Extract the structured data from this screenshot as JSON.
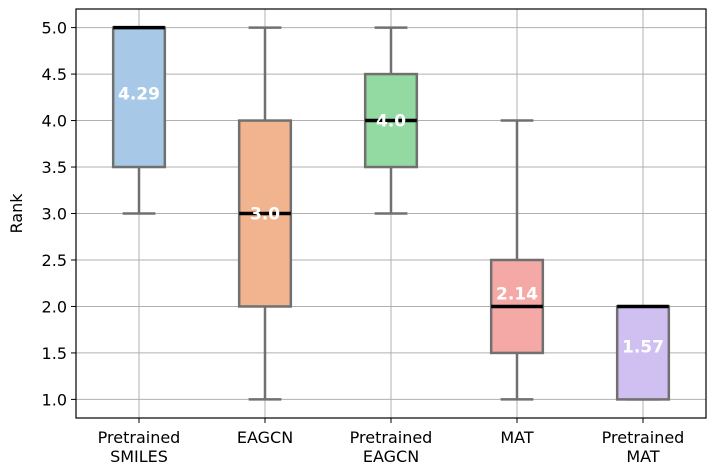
{
  "chart_data": {
    "type": "box",
    "title": "",
    "xlabel": "",
    "ylabel": "Rank",
    "ylim": [
      0.8,
      5.2
    ],
    "yticks": [
      "1.0",
      "1.5",
      "2.0",
      "2.5",
      "3.0",
      "3.5",
      "4.0",
      "4.5",
      "5.0"
    ],
    "grid": true,
    "categories": [
      [
        "Pretrained",
        "SMILES"
      ],
      [
        "EAGCN"
      ],
      [
        "Pretrained",
        "EAGCN"
      ],
      [
        "MAT"
      ],
      [
        "Pretrained",
        "MAT"
      ]
    ],
    "boxes": [
      {
        "whislo": 3.0,
        "q1": 3.5,
        "median": 5.0,
        "q3": 5.0,
        "whishi": 5.0,
        "mean_label": "4.29",
        "mean": 4.29,
        "color": "#a8c8e8"
      },
      {
        "whislo": 1.0,
        "q1": 2.0,
        "median": 3.0,
        "q3": 4.0,
        "whishi": 5.0,
        "mean_label": "3.0",
        "mean": 3.0,
        "color": "#f2b48e"
      },
      {
        "whislo": 3.0,
        "q1": 3.5,
        "median": 4.0,
        "q3": 4.5,
        "whishi": 5.0,
        "mean_label": "4.0",
        "mean": 4.0,
        "color": "#92d9a2"
      },
      {
        "whislo": 1.0,
        "q1": 1.5,
        "median": 2.0,
        "q3": 2.5,
        "whishi": 4.0,
        "mean_label": "2.14",
        "mean": 2.14,
        "color": "#f4a9a6"
      },
      {
        "whislo": 1.0,
        "q1": 1.0,
        "median": 2.0,
        "q3": 2.0,
        "whishi": 2.0,
        "mean_label": "1.57",
        "mean": 1.57,
        "color": "#d0c0f2"
      }
    ]
  }
}
